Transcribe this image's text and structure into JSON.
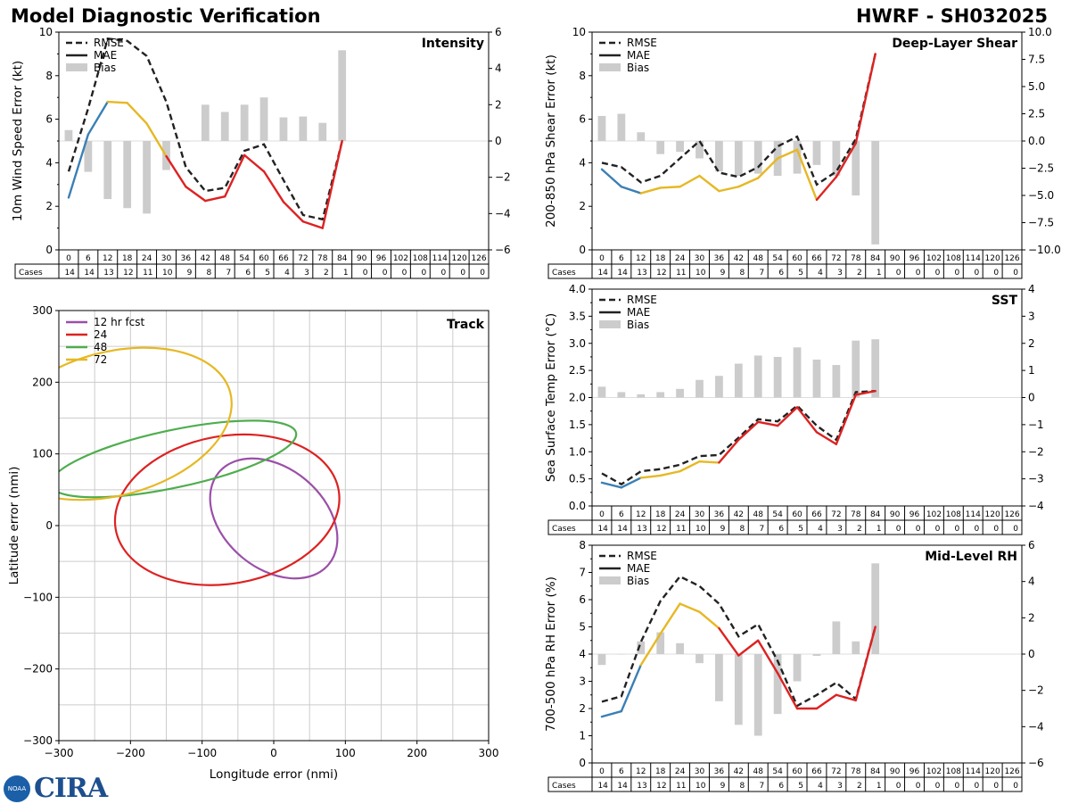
{
  "header": {
    "title_left": "Model Diagnostic Verification",
    "title_right": "HWRF - SH032025"
  },
  "logo": {
    "text": "CIRA",
    "noaa_text": "NOAA"
  },
  "colors": {
    "rmse": "#222222",
    "bias": "#cccccc",
    "early": "#3a7fb5",
    "mid": "#e6b824",
    "late": "#dd2222",
    "track12": "#9b4fa8",
    "track24": "#dd2222",
    "track48": "#4ead4e",
    "track72": "#e6b824"
  },
  "lead_times": [
    0,
    6,
    12,
    18,
    24,
    30,
    36,
    42,
    48,
    54,
    60,
    66,
    72,
    78,
    84,
    90,
    96,
    102,
    108,
    114,
    120,
    126
  ],
  "cases": [
    14,
    14,
    13,
    12,
    11,
    10,
    9,
    8,
    7,
    6,
    5,
    4,
    3,
    2,
    1,
    0,
    0,
    0,
    0,
    0,
    0,
    0
  ],
  "cases_label": "Cases",
  "legend_labels": {
    "rmse": "RMSE",
    "mae": "MAE",
    "bias": "Bias"
  },
  "chart_data": [
    {
      "id": "intensity",
      "type": "line",
      "title": "Intensity",
      "ylabel": "10m Wind Speed Error (kt)",
      "ylim": [
        0,
        10
      ],
      "ylim_right": [
        -6,
        6
      ],
      "yticks": [
        0,
        2,
        4,
        6,
        8,
        10
      ],
      "yticks_right": [
        -6,
        -4,
        -2,
        0,
        2,
        4,
        6
      ],
      "x": [
        0,
        6,
        12,
        18,
        24,
        30,
        36,
        42,
        48,
        54,
        60,
        66,
        72,
        78,
        84
      ],
      "rmse": [
        3.6,
        6.5,
        9.7,
        9.6,
        8.9,
        6.8,
        3.8,
        2.7,
        2.85,
        4.55,
        4.85,
        3.2,
        1.6,
        1.4,
        5.0
      ],
      "mae": [
        2.4,
        5.3,
        6.8,
        6.75,
        5.8,
        4.3,
        2.9,
        2.25,
        2.45,
        4.35,
        3.6,
        2.2,
        1.3,
        1.0,
        5.0
      ],
      "bias": [
        0.6,
        -1.7,
        -3.2,
        -3.7,
        -4.0,
        -1.6,
        0,
        2.0,
        1.6,
        2.0,
        2.4,
        1.3,
        1.35,
        1.0,
        5.0
      ]
    },
    {
      "id": "shear",
      "type": "line",
      "title": "Deep-Layer Shear",
      "ylabel": "200-850 hPa Shear Error (kt)",
      "ylim": [
        0,
        10
      ],
      "ylim_right": [
        -10,
        10
      ],
      "yticks": [
        0,
        2,
        4,
        6,
        8,
        10
      ],
      "yticks_right": [
        -10.0,
        -7.5,
        -5.0,
        -2.5,
        0.0,
        2.5,
        5.0,
        7.5,
        10.0
      ],
      "x": [
        0,
        6,
        12,
        18,
        24,
        30,
        36,
        42,
        48,
        54,
        60,
        66,
        72,
        78,
        84
      ],
      "rmse": [
        4.0,
        3.8,
        3.1,
        3.4,
        4.2,
        5.0,
        3.55,
        3.35,
        3.8,
        4.75,
        5.2,
        3.0,
        3.6,
        5.1,
        9.0
      ],
      "mae": [
        3.7,
        2.9,
        2.6,
        2.85,
        2.9,
        3.4,
        2.7,
        2.9,
        3.3,
        4.2,
        4.6,
        2.3,
        3.35,
        4.9,
        9.0
      ],
      "bias": [
        2.3,
        2.5,
        0.8,
        -1.2,
        -1.0,
        -1.6,
        -2.8,
        -3.2,
        -3.0,
        -3.2,
        -3.0,
        -2.2,
        -3.2,
        -5.0,
        -9.5
      ]
    },
    {
      "id": "sst",
      "type": "line",
      "title": "SST",
      "ylabel": "Sea Surface Temp Error (°C)",
      "ylim": [
        0,
        4
      ],
      "ylim_right": [
        -4,
        4
      ],
      "yticks": [
        0.0,
        0.5,
        1.0,
        1.5,
        2.0,
        2.5,
        3.0,
        3.5,
        4.0
      ],
      "yticks_right": [
        -4,
        -3,
        -2,
        -1,
        0,
        1,
        2,
        3,
        4
      ],
      "x": [
        0,
        6,
        12,
        18,
        24,
        30,
        36,
        42,
        48,
        54,
        60,
        66,
        72,
        78,
        84
      ],
      "rmse": [
        0.6,
        0.4,
        0.64,
        0.68,
        0.76,
        0.92,
        0.94,
        1.26,
        1.6,
        1.56,
        1.85,
        1.48,
        1.22,
        2.1,
        2.12
      ],
      "mae": [
        0.43,
        0.34,
        0.52,
        0.56,
        0.64,
        0.82,
        0.8,
        1.22,
        1.55,
        1.48,
        1.82,
        1.36,
        1.14,
        2.05,
        2.12
      ],
      "bias": [
        0.4,
        0.2,
        0.12,
        0.2,
        0.32,
        0.65,
        0.8,
        1.25,
        1.55,
        1.5,
        1.85,
        1.4,
        1.2,
        2.1,
        2.15
      ]
    },
    {
      "id": "rh",
      "type": "line",
      "title": "Mid-Level RH",
      "ylabel": "700-500 hPa RH Error (%)",
      "ylim": [
        0,
        8
      ],
      "ylim_right": [
        -6,
        6
      ],
      "yticks": [
        0,
        1,
        2,
        3,
        4,
        5,
        6,
        7,
        8
      ],
      "yticks_right": [
        -6,
        -4,
        -2,
        0,
        2,
        4,
        6
      ],
      "x": [
        0,
        6,
        12,
        18,
        24,
        30,
        36,
        42,
        48,
        54,
        60,
        66,
        72,
        78,
        84
      ],
      "rmse": [
        2.25,
        2.45,
        4.45,
        5.95,
        6.85,
        6.5,
        5.85,
        4.65,
        5.1,
        3.75,
        2.1,
        2.5,
        2.95,
        2.35,
        5.0
      ],
      "mae": [
        1.7,
        1.9,
        3.6,
        4.75,
        5.85,
        5.55,
        4.95,
        3.95,
        4.5,
        3.3,
        2.0,
        2.0,
        2.5,
        2.3,
        5.0
      ],
      "bias": [
        -0.6,
        0,
        0.7,
        1.2,
        0.6,
        -0.5,
        -2.6,
        -3.9,
        -4.5,
        -3.3,
        -1.5,
        -0.1,
        1.8,
        0.7,
        5.0
      ]
    },
    {
      "id": "track",
      "type": "ellipse",
      "title": "Track",
      "xlabel": "Longitude error (nmi)",
      "ylabel": "Latitude error (nmi)",
      "xlim": [
        -300,
        300
      ],
      "ylim": [
        -300,
        300
      ],
      "ticks": [
        -300,
        -200,
        -100,
        0,
        100,
        200,
        300
      ],
      "ellipses": [
        {
          "name": "12 hr fcst",
          "cx": 0,
          "cy": 10,
          "rx": 70,
          "ry": 100,
          "angle": 50
        },
        {
          "name": "24",
          "cx": -65,
          "cy": 22,
          "rx": 158,
          "ry": 103,
          "angle": 10
        },
        {
          "name": "48",
          "cx": -140,
          "cy": 93,
          "rx": 175,
          "ry": 40,
          "angle": 12
        },
        {
          "name": "72",
          "cx": -225,
          "cy": 142,
          "rx": 170,
          "ry": 100,
          "angle": 15
        }
      ]
    }
  ]
}
